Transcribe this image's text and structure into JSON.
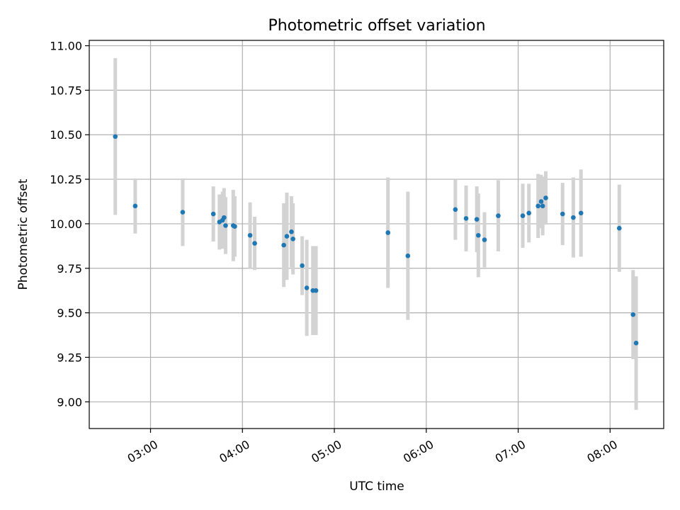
{
  "chart_data": {
    "type": "scatter",
    "title": "Photometric offset variation",
    "xlabel": "UTC time",
    "ylabel": "Photometric offset",
    "x_ticks": [
      "03:00",
      "04:00",
      "05:00",
      "06:00",
      "07:00",
      "08:00"
    ],
    "y_ticks": [
      "9.00",
      "9.25",
      "9.50",
      "9.75",
      "10.00",
      "10.25",
      "10.50",
      "10.75",
      "11.00"
    ],
    "xlim": [
      "02:20",
      "08:35"
    ],
    "ylim": [
      8.85,
      11.03
    ],
    "grid": true,
    "marker_color": "#1f77b4",
    "errorbar_color": "#d3d3d3",
    "points": [
      {
        "x": "02:37",
        "y": 10.49,
        "err": 0.44
      },
      {
        "x": "02:50",
        "y": 10.1,
        "err": 0.155
      },
      {
        "x": "03:21",
        "y": 10.065,
        "err": 0.19
      },
      {
        "x": "03:41",
        "y": 10.055,
        "err": 0.155
      },
      {
        "x": "03:45",
        "y": 10.01,
        "err": 0.155
      },
      {
        "x": "03:47",
        "y": 10.02,
        "err": 0.16
      },
      {
        "x": "03:48",
        "y": 10.035,
        "err": 0.165
      },
      {
        "x": "03:49",
        "y": 9.99,
        "err": 0.16
      },
      {
        "x": "03:54",
        "y": 9.99,
        "err": 0.2
      },
      {
        "x": "03:55",
        "y": 9.985,
        "err": 0.17
      },
      {
        "x": "04:05",
        "y": 9.935,
        "err": 0.185
      },
      {
        "x": "04:08",
        "y": 9.89,
        "err": 0.15
      },
      {
        "x": "04:27",
        "y": 9.88,
        "err": 0.235
      },
      {
        "x": "04:29",
        "y": 9.93,
        "err": 0.245
      },
      {
        "x": "04:32",
        "y": 9.955,
        "err": 0.2
      },
      {
        "x": "04:33",
        "y": 9.915,
        "err": 0.2
      },
      {
        "x": "04:39",
        "y": 9.765,
        "err": 0.165
      },
      {
        "x": "04:42",
        "y": 9.64,
        "err": 0.27
      },
      {
        "x": "04:46",
        "y": 9.625,
        "err": 0.25
      },
      {
        "x": "04:48",
        "y": 9.625,
        "err": 0.25
      },
      {
        "x": "05:35",
        "y": 9.95,
        "err": 0.31
      },
      {
        "x": "05:48",
        "y": 9.82,
        "err": 0.36
      },
      {
        "x": "06:19",
        "y": 10.08,
        "err": 0.17
      },
      {
        "x": "06:26",
        "y": 10.03,
        "err": 0.185
      },
      {
        "x": "06:33",
        "y": 10.025,
        "err": 0.185
      },
      {
        "x": "06:34",
        "y": 9.935,
        "err": 0.235
      },
      {
        "x": "06:38",
        "y": 9.91,
        "err": 0.155
      },
      {
        "x": "06:47",
        "y": 10.045,
        "err": 0.2
      },
      {
        "x": "07:03",
        "y": 10.045,
        "err": 0.18
      },
      {
        "x": "07:07",
        "y": 10.06,
        "err": 0.165
      },
      {
        "x": "07:13",
        "y": 10.1,
        "err": 0.18
      },
      {
        "x": "07:15",
        "y": 10.125,
        "err": 0.15
      },
      {
        "x": "07:16",
        "y": 10.1,
        "err": 0.165
      },
      {
        "x": "07:18",
        "y": 10.145,
        "err": 0.15
      },
      {
        "x": "07:29",
        "y": 10.055,
        "err": 0.175
      },
      {
        "x": "07:36",
        "y": 10.035,
        "err": 0.225
      },
      {
        "x": "07:41",
        "y": 10.06,
        "err": 0.245
      },
      {
        "x": "08:06",
        "y": 9.975,
        "err": 0.245
      },
      {
        "x": "08:15",
        "y": 9.49,
        "err": 0.25
      },
      {
        "x": "08:17",
        "y": 9.33,
        "err": 0.375
      }
    ]
  }
}
